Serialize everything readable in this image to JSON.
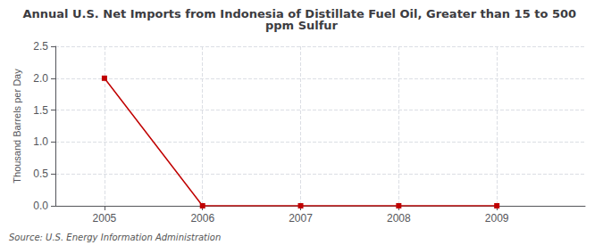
{
  "chart_data": {
    "type": "line",
    "title": "Annual U.S. Net Imports from Indonesia of Distillate Fuel Oil, Greater than 15 to 500 ppm Sulfur",
    "ylabel": "Thousand Barrels per Day",
    "source": "Source: U.S. Energy Information Administration",
    "x": [
      2005,
      2006,
      2007,
      2008,
      2009
    ],
    "values": [
      2.0,
      0.0,
      0.0,
      0.0,
      0.0
    ],
    "color": "#c00000",
    "marker": "square",
    "xlim": [
      2004.5,
      2009.9
    ],
    "xticks": [
      2005,
      2006,
      2007,
      2008,
      2009
    ],
    "ylim": [
      0.0,
      2.5
    ],
    "yticks": [
      {
        "value": 0.0,
        "label": "0.0"
      },
      0.5,
      {
        "value": 1.0,
        "label": "1.0"
      },
      1.5,
      {
        "value": 2.0,
        "label": "2.0"
      },
      2.5
    ],
    "grid": true
  }
}
